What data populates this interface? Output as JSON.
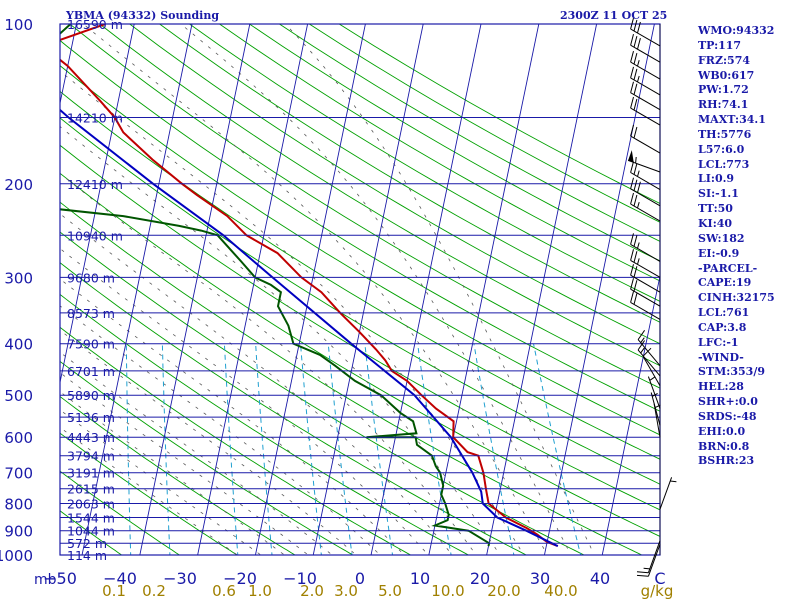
{
  "header": {
    "station": "YBMA (94332) Sounding",
    "valid_time": "2300Z 11 OCT 25"
  },
  "colors": {
    "isobar": "#1a1aa8",
    "isotherm": "#1a1aa8",
    "dry_adiabat": "#00a000",
    "moist_adiabat": "#5a5a5a",
    "mixing_ratio": "#20a0d0",
    "temperature": "#c00000",
    "dewpoint": "#005500",
    "parcel": "#0000c0",
    "frame": "#1a1aa8",
    "mixing_ratio_labels": "#a08000",
    "text": "#1a1aa8"
  },
  "chart_data": {
    "type": "line",
    "title": "YBMA (94332) Sounding",
    "x_axis_label": "",
    "x_axis_unit": "",
    "y_axis_label": "mb",
    "pressure_levels": [
      100,
      200,
      300,
      400,
      500,
      600,
      700,
      800,
      900,
      1000
    ],
    "temperature_ticks": [
      -50,
      -40,
      -30,
      -20,
      -10,
      0,
      10,
      20,
      30,
      40,
      "C"
    ],
    "height_labels": [
      {
        "p": 100,
        "text": "16590 m"
      },
      {
        "p": 150,
        "text": "14210 m"
      },
      {
        "p": 200,
        "text": "12410 m"
      },
      {
        "p": 250,
        "text": "10940 m"
      },
      {
        "p": 300,
        "text": "9680 m"
      },
      {
        "p": 350,
        "text": "8573 m"
      },
      {
        "p": 400,
        "text": "7590 m"
      },
      {
        "p": 450,
        "text": "6701 m"
      },
      {
        "p": 500,
        "text": "5890 m"
      },
      {
        "p": 550,
        "text": "5136 m"
      },
      {
        "p": 600,
        "text": "4443 m"
      },
      {
        "p": 650,
        "text": "3794 m"
      },
      {
        "p": 700,
        "text": "3191 m"
      },
      {
        "p": 750,
        "text": "2615 m"
      },
      {
        "p": 800,
        "text": "2063 m"
      },
      {
        "p": 850,
        "text": "1544 m"
      },
      {
        "p": 900,
        "text": "1044 m"
      },
      {
        "p": 950,
        "text": "572 m"
      },
      {
        "p": 1000,
        "text": "114 m"
      }
    ],
    "mixing_ratio_labels": [
      "0.1",
      "0.2",
      "0.6",
      "1.0",
      "2.0",
      "3.0",
      "5.0",
      "10.0",
      "20.0",
      "40.0",
      "g/kg"
    ],
    "series": [
      {
        "name": "Temperature",
        "points": [
          [
            962,
            32
          ],
          [
            945,
            30
          ],
          [
            930,
            29
          ],
          [
            915,
            28
          ],
          [
            890,
            26
          ],
          [
            870,
            24
          ],
          [
            850,
            22
          ],
          [
            800,
            18.5
          ],
          [
            750,
            17.5
          ],
          [
            700,
            16.5
          ],
          [
            650,
            15
          ],
          [
            640,
            13
          ],
          [
            600,
            10
          ],
          [
            560,
            9.5
          ],
          [
            530,
            6
          ],
          [
            500,
            3
          ],
          [
            470,
            0
          ],
          [
            450,
            -3
          ],
          [
            430,
            -4.5
          ],
          [
            410,
            -6.5
          ],
          [
            380,
            -10
          ],
          [
            350,
            -14
          ],
          [
            320,
            -18
          ],
          [
            300,
            -22
          ],
          [
            270,
            -27
          ],
          [
            250,
            -33
          ],
          [
            230,
            -37
          ],
          [
            210,
            -43
          ],
          [
            200,
            -46
          ],
          [
            180,
            -52
          ],
          [
            160,
            -58
          ],
          [
            150,
            -60
          ],
          [
            140,
            -63
          ],
          [
            120,
            -70
          ],
          [
            110,
            -75
          ],
          [
            100,
            -65
          ]
        ]
      },
      {
        "name": "Dewpoint",
        "points": [
          [
            962,
            20
          ],
          [
            950,
            20
          ],
          [
            900,
            16
          ],
          [
            880,
            10
          ],
          [
            860,
            12
          ],
          [
            840,
            12
          ],
          [
            800,
            11
          ],
          [
            770,
            10
          ],
          [
            740,
            10
          ],
          [
            700,
            9
          ],
          [
            680,
            8
          ],
          [
            650,
            7
          ],
          [
            620,
            4
          ],
          [
            600,
            3.5
          ],
          [
            600,
            -5
          ],
          [
            590,
            3.5
          ],
          [
            560,
            2.5
          ],
          [
            540,
            0
          ],
          [
            500,
            -4
          ],
          [
            470,
            -9
          ],
          [
            440,
            -13
          ],
          [
            420,
            -16
          ],
          [
            400,
            -21
          ],
          [
            370,
            -22.5
          ],
          [
            340,
            -25
          ],
          [
            320,
            -25
          ],
          [
            310,
            -27
          ],
          [
            300,
            -30
          ],
          [
            280,
            -33
          ],
          [
            250,
            -38
          ],
          [
            245,
            -41
          ],
          [
            240,
            -45
          ],
          [
            230,
            -55
          ],
          [
            220,
            -72
          ],
          [
            200,
            -74
          ],
          [
            180,
            -78
          ],
          [
            160,
            -77
          ],
          [
            150,
            -79
          ],
          [
            130,
            -76
          ],
          [
            115,
            -76
          ],
          [
            100,
            -71
          ]
        ]
      },
      {
        "name": "Parcel",
        "points": [
          [
            962,
            32
          ],
          [
            900,
            26
          ],
          [
            850,
            20.5
          ],
          [
            800,
            17.5
          ],
          [
            760,
            16.8
          ],
          [
            700,
            14.6
          ],
          [
            600,
            9.6
          ],
          [
            500,
            1.8
          ],
          [
            400,
            -11
          ],
          [
            300,
            -27
          ],
          [
            250,
            -37
          ],
          [
            200,
            -51
          ],
          [
            150,
            -68
          ],
          [
            120,
            -80
          ],
          [
            110,
            -85
          ]
        ]
      }
    ],
    "wind_barbs": [
      {
        "p": 110,
        "dir": 300,
        "kt": 30
      },
      {
        "p": 118,
        "dir": 300,
        "kt": 30
      },
      {
        "p": 127,
        "dir": 300,
        "kt": 25
      },
      {
        "p": 136,
        "dir": 300,
        "kt": 25
      },
      {
        "p": 145,
        "dir": 300,
        "kt": 20
      },
      {
        "p": 155,
        "dir": 300,
        "kt": 20
      },
      {
        "p": 175,
        "dir": 300,
        "kt": 20
      },
      {
        "p": 190,
        "dir": 290,
        "kt": 55
      },
      {
        "p": 205,
        "dir": 300,
        "kt": 25
      },
      {
        "p": 220,
        "dir": 300,
        "kt": 30
      },
      {
        "p": 235,
        "dir": 300,
        "kt": 25
      },
      {
        "p": 280,
        "dir": 300,
        "kt": 25
      },
      {
        "p": 300,
        "dir": 300,
        "kt": 25
      },
      {
        "p": 320,
        "dir": 300,
        "kt": 20
      },
      {
        "p": 340,
        "dir": 300,
        "kt": 20
      },
      {
        "p": 360,
        "dir": 300,
        "kt": 20
      },
      {
        "p": 440,
        "dir": 320,
        "kt": 15
      },
      {
        "p": 460,
        "dir": 320,
        "kt": 15
      },
      {
        "p": 480,
        "dir": 330,
        "kt": 10
      },
      {
        "p": 530,
        "dir": 340,
        "kt": 5
      },
      {
        "p": 570,
        "dir": 345,
        "kt": 5
      },
      {
        "p": 600,
        "dir": 350,
        "kt": 5
      },
      {
        "p": 820,
        "dir": 20,
        "kt": 5
      },
      {
        "p": 940,
        "dir": 200,
        "kt": 15
      },
      {
        "p": 955,
        "dir": 200,
        "kt": 10
      }
    ]
  },
  "indices": [
    "WMO:94332",
    "TP:117",
    "FRZ:574",
    "WB0:617",
    "PW:1.72",
    "RH:74.1",
    "MAXT:34.1",
    "TH:5776",
    "L57:6.0",
    "LCL:773",
    "LI:0.9",
    "SI:-1.1",
    "TT:50",
    "KI:40",
    "SW:182",
    "EI:-0.9",
    "-PARCEL-",
    "CAPE:19",
    "CINH:32175",
    "LCL:761",
    "CAP:3.8",
    "LFC:-1",
    "-WIND-",
    "STM:353/9",
    "HEL:28",
    "SHR+:0.0",
    "SRDS:-48",
    "EHI:0.0",
    "BRN:0.8",
    "BSHR:23"
  ]
}
